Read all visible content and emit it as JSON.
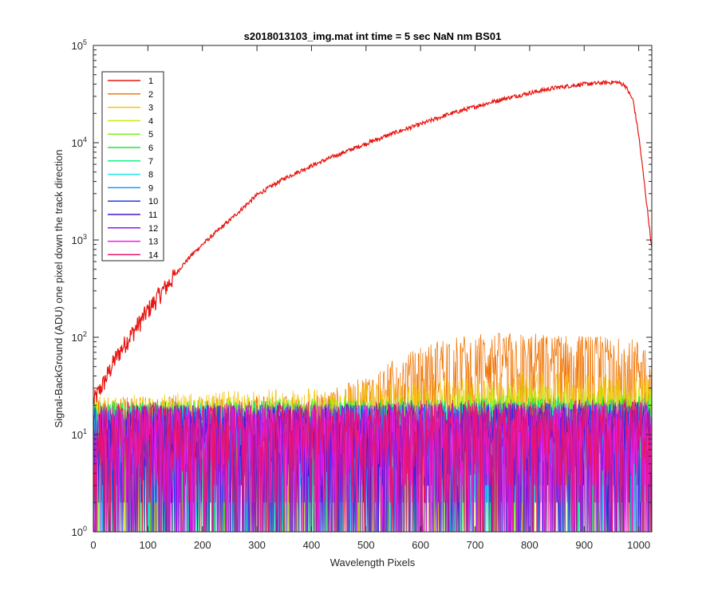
{
  "chart_data": {
    "type": "line",
    "title": "s2018013103_img.mat int time = 5 sec  NaN nm BS01",
    "xlabel": "Wavelength Pixels",
    "ylabel": "Signal-BackGround (ADU) one pixel down the track direction",
    "xlim": [
      0,
      1024
    ],
    "ylim": [
      1,
      100000
    ],
    "y_scale": "log",
    "x_ticks": [
      0,
      100,
      200,
      300,
      400,
      500,
      600,
      700,
      800,
      900,
      1000
    ],
    "y_ticks": [
      {
        "base": "10",
        "exp": "0",
        "value": 1
      },
      {
        "base": "10",
        "exp": "1",
        "value": 10
      },
      {
        "base": "10",
        "exp": "2",
        "value": 100
      },
      {
        "base": "10",
        "exp": "3",
        "value": 1000
      },
      {
        "base": "10",
        "exp": "4",
        "value": 10000
      },
      {
        "base": "10",
        "exp": "5",
        "value": 100000
      }
    ],
    "grid": false,
    "legend_position": "top-left",
    "series": [
      {
        "name": "1",
        "color": "#e8150f",
        "profile": [
          [
            0,
            22
          ],
          [
            20,
            35
          ],
          [
            40,
            60
          ],
          [
            60,
            90
          ],
          [
            80,
            130
          ],
          [
            100,
            190
          ],
          [
            120,
            270
          ],
          [
            140,
            370
          ],
          [
            160,
            520
          ],
          [
            180,
            700
          ],
          [
            200,
            900
          ],
          [
            250,
            1600
          ],
          [
            300,
            2900
          ],
          [
            350,
            4300
          ],
          [
            400,
            5800
          ],
          [
            450,
            7600
          ],
          [
            500,
            9800
          ],
          [
            550,
            12500
          ],
          [
            600,
            15500
          ],
          [
            650,
            19500
          ],
          [
            700,
            23500
          ],
          [
            750,
            28000
          ],
          [
            800,
            32500
          ],
          [
            850,
            37000
          ],
          [
            900,
            40000
          ],
          [
            940,
            41500
          ],
          [
            960,
            42000
          ],
          [
            975,
            39000
          ],
          [
            990,
            27000
          ],
          [
            1000,
            12000
          ],
          [
            1010,
            4000
          ],
          [
            1020,
            1300
          ],
          [
            1024,
            800
          ]
        ]
      },
      {
        "name": "2",
        "color": "#f07a0d",
        "profile": [
          [
            0,
            14
          ],
          [
            400,
            14
          ],
          [
            480,
            20
          ],
          [
            560,
            35
          ],
          [
            640,
            55
          ],
          [
            720,
            62
          ],
          [
            800,
            62
          ],
          [
            900,
            58
          ],
          [
            980,
            55
          ],
          [
            1024,
            48
          ]
        ]
      },
      {
        "name": "3",
        "color": "#f5c40a",
        "profile": [
          [
            0,
            14
          ],
          [
            300,
            16
          ],
          [
            600,
            20
          ],
          [
            800,
            25
          ],
          [
            1024,
            22
          ]
        ]
      },
      {
        "name": "4",
        "color": "#cbea15",
        "profile": [
          [
            0,
            13
          ],
          [
            500,
            14
          ],
          [
            800,
            19
          ],
          [
            1024,
            18
          ]
        ]
      },
      {
        "name": "5",
        "color": "#7cf21c",
        "profile": [
          [
            0,
            12
          ],
          [
            1024,
            15
          ]
        ]
      },
      {
        "name": "6",
        "color": "#1ee63b",
        "profile": [
          [
            0,
            12
          ],
          [
            1024,
            14
          ]
        ]
      },
      {
        "name": "7",
        "color": "#12f08a",
        "profile": [
          [
            0,
            12
          ],
          [
            1024,
            13
          ]
        ]
      },
      {
        "name": "8",
        "color": "#1ae6e6",
        "profile": [
          [
            0,
            11
          ],
          [
            1024,
            12
          ]
        ]
      },
      {
        "name": "9",
        "color": "#1a9ef2",
        "profile": [
          [
            0,
            11
          ],
          [
            1024,
            12
          ]
        ]
      },
      {
        "name": "10",
        "color": "#1d3dee",
        "profile": [
          [
            0,
            11
          ],
          [
            1024,
            12
          ]
        ]
      },
      {
        "name": "11",
        "color": "#4a14cf",
        "profile": [
          [
            0,
            11
          ],
          [
            1024,
            12
          ]
        ]
      },
      {
        "name": "12",
        "color": "#9a14e8",
        "profile": [
          [
            0,
            11
          ],
          [
            1024,
            12
          ]
        ]
      },
      {
        "name": "13",
        "color": "#ef1ce0",
        "profile": [
          [
            0,
            11
          ],
          [
            1024,
            12
          ]
        ]
      },
      {
        "name": "14",
        "color": "#e8146a",
        "profile": [
          [
            0,
            12
          ],
          [
            1024,
            13
          ]
        ]
      }
    ]
  }
}
